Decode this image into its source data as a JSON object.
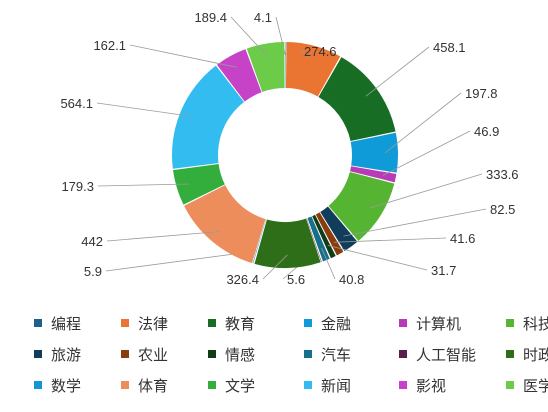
{
  "chart_data": {
    "type": "pie",
    "donut": true,
    "legend_position": "bottom",
    "categories": [
      "编程",
      "法律",
      "教育",
      "金融",
      "计算机",
      "科技",
      "旅游",
      "农业",
      "情感",
      "汽车",
      "人工智能",
      "时政",
      "数学",
      "体育",
      "文学",
      "新闻",
      "影视",
      "医学"
    ],
    "values": [
      4.1,
      274.6,
      458.1,
      197.8,
      46.9,
      333.6,
      82.5,
      41.6,
      31.7,
      40.8,
      5.6,
      326.4,
      5.9,
      442,
      179.3,
      564.1,
      162.1,
      189.4
    ],
    "value_labels": [
      "4.1",
      "274.6",
      "458.1",
      "197.8",
      "46.9",
      "333.6",
      "82.5",
      "41.6",
      "31.7",
      "40.8",
      "5.6",
      "326.4",
      "5.9",
      "442",
      "179.3",
      "564.1",
      "162.1",
      "189.4"
    ],
    "colors": [
      "#1f5f8b",
      "#ea7431",
      "#186d24",
      "#0f9ad8",
      "#b83ab6",
      "#55b533",
      "#0f3d5a",
      "#8a3c0c",
      "#0f3d18",
      "#186f8c",
      "#5a1e4c",
      "#2f6e18",
      "#1396d4",
      "#ee8d5c",
      "#33ad3c",
      "#33bcf0",
      "#c642c6",
      "#6ccc4a"
    ]
  }
}
